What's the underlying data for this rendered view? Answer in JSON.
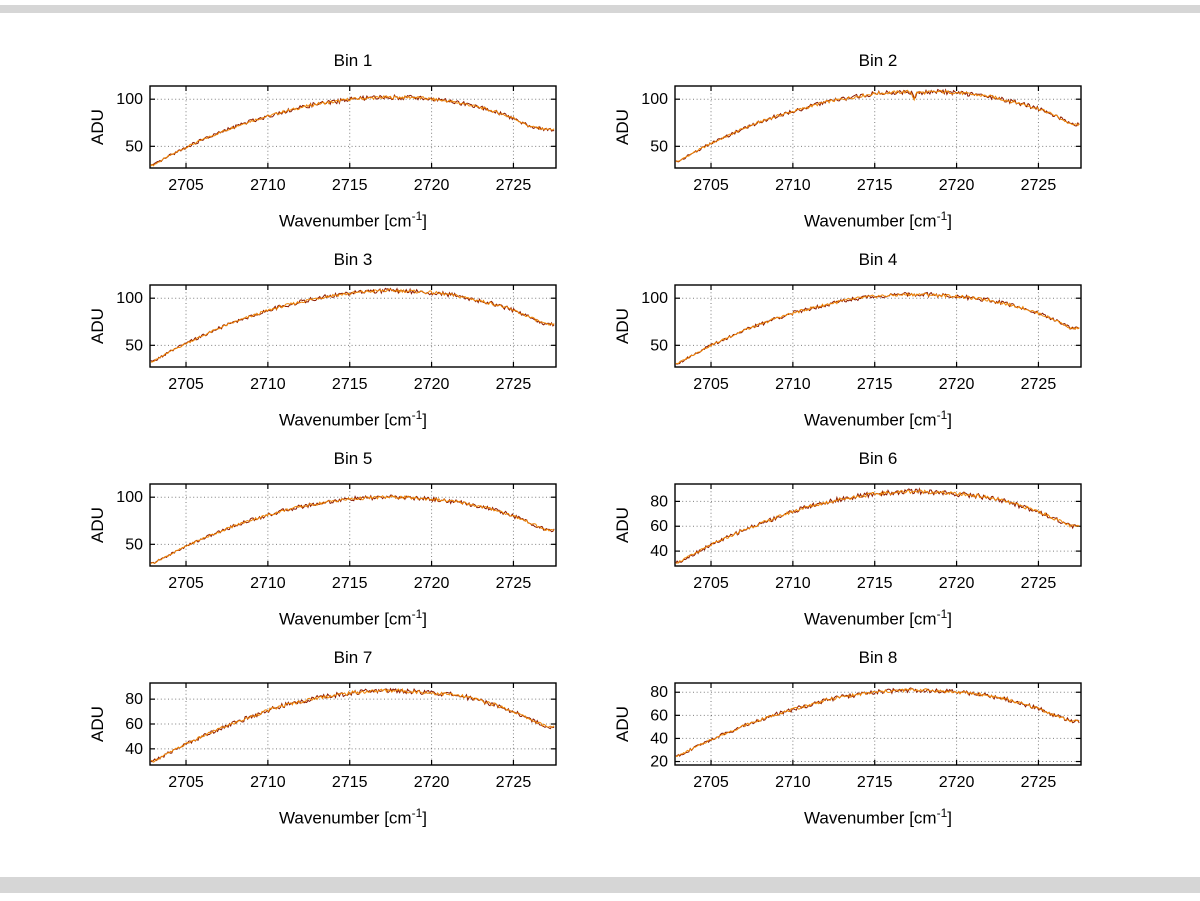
{
  "figure": {
    "background": "#ffffff",
    "chrome_color": "#d6d6d6"
  },
  "axes": {
    "ylabel": "ADU",
    "xlabel": "Wavenumber [cm-1]",
    "xlabel_prefix": "Wavenumber [cm",
    "xlabel_sup": "-1",
    "xlabel_suffix": "]",
    "xticks": [
      2705,
      2710,
      2715,
      2720,
      2725
    ],
    "xlim": [
      2702.8,
      2727.6
    ],
    "x_start": 2703,
    "x_step": 1,
    "grid": "dotted",
    "line_color": "#ef8607",
    "overlay_color": "#8c1a00"
  },
  "chart_data": [
    {
      "type": "line",
      "title": "Bin 1",
      "yticks": [
        50,
        100
      ],
      "ylim": [
        27,
        114
      ],
      "values": [
        30,
        40,
        49,
        57,
        64,
        71,
        77,
        82,
        87,
        91,
        95,
        97,
        100,
        101,
        102,
        102,
        102,
        100,
        98,
        95,
        91,
        86,
        80,
        71,
        68
      ]
    },
    {
      "type": "line",
      "title": "Bin 2",
      "yticks": [
        50,
        100
      ],
      "ylim": [
        27,
        114
      ],
      "values": [
        34,
        44,
        53,
        61,
        69,
        76,
        82,
        87,
        92,
        97,
        100,
        103,
        106,
        107,
        108,
        107,
        108,
        107,
        105,
        103,
        99,
        95,
        90,
        83,
        73
      ],
      "spikes": [
        {
          "x": 2717.4,
          "dy": -8
        }
      ]
    },
    {
      "type": "line",
      "title": "Bin 3",
      "yticks": [
        50,
        100
      ],
      "ylim": [
        27,
        114
      ],
      "values": [
        33,
        43,
        52,
        60,
        68,
        75,
        81,
        87,
        92,
        96,
        100,
        103,
        105,
        107,
        108,
        108,
        107,
        106,
        104,
        101,
        97,
        93,
        87,
        80,
        72
      ]
    },
    {
      "type": "line",
      "title": "Bin 4",
      "yticks": [
        50,
        100
      ],
      "ylim": [
        27,
        114
      ],
      "values": [
        31,
        41,
        50,
        58,
        66,
        72,
        79,
        84,
        89,
        93,
        97,
        100,
        102,
        103,
        104,
        104,
        103,
        102,
        100,
        98,
        94,
        90,
        84,
        77,
        68
      ]
    },
    {
      "type": "line",
      "title": "Bin 5",
      "yticks": [
        50,
        100
      ],
      "ylim": [
        27,
        114
      ],
      "values": [
        30,
        39,
        48,
        56,
        63,
        70,
        76,
        81,
        86,
        90,
        93,
        96,
        98,
        99,
        100,
        100,
        99,
        98,
        96,
        94,
        90,
        86,
        80,
        73,
        65
      ]
    },
    {
      "type": "line",
      "title": "Bin 6",
      "yticks": [
        40,
        60,
        80
      ],
      "ylim": [
        28,
        94
      ],
      "values": [
        31,
        38,
        45,
        51,
        57,
        62,
        67,
        72,
        76,
        79,
        82,
        84,
        86,
        87,
        88,
        88,
        87,
        86,
        85,
        83,
        80,
        76,
        72,
        66,
        60
      ]
    },
    {
      "type": "line",
      "title": "Bin 7",
      "yticks": [
        40,
        60,
        80
      ],
      "ylim": [
        27,
        93
      ],
      "values": [
        30,
        37,
        44,
        50,
        56,
        61,
        66,
        71,
        75,
        78,
        81,
        83,
        85,
        86,
        87,
        87,
        86,
        85,
        84,
        82,
        79,
        75,
        70,
        64,
        58
      ]
    },
    {
      "type": "line",
      "title": "Bin 8",
      "yticks": [
        20,
        40,
        60,
        80
      ],
      "ylim": [
        17,
        88
      ],
      "values": [
        25,
        32,
        39,
        45,
        51,
        56,
        61,
        65,
        69,
        73,
        76,
        78,
        80,
        81,
        82,
        82,
        81,
        80,
        79,
        77,
        74,
        70,
        66,
        60,
        55
      ]
    }
  ]
}
